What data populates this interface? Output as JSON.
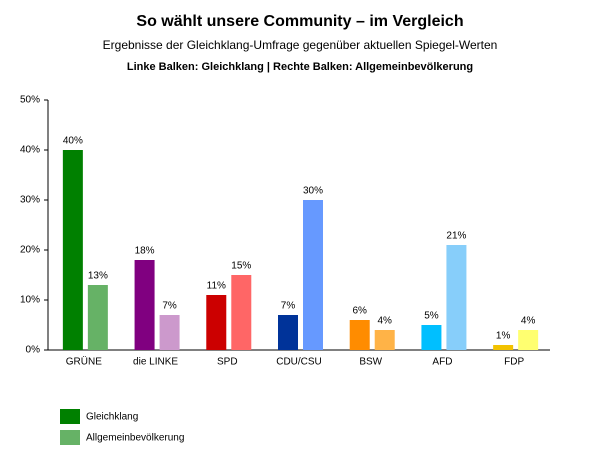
{
  "chart_data": {
    "type": "bar",
    "title": "So wählt unsere Community – im Vergleich",
    "subtitle": "Ergebnisse der Gleichklang-Umfrage gegenüber aktuellen Spiegel-Werten",
    "annotation": "Linke Balken: Gleichklang | Rechte Balken: Allgemeinbevölkerung",
    "categories": [
      "GRÜNE",
      "die LINKE",
      "SPD",
      "CDU/CSU",
      "BSW",
      "AFD",
      "FDP"
    ],
    "series": [
      {
        "name": "Gleichklang",
        "color": "#008000",
        "colors": [
          "#008000",
          "#800080",
          "#cc0000",
          "#003399",
          "#ff8c00",
          "#00bfff",
          "#f2c200"
        ],
        "values": [
          40,
          18,
          11,
          7,
          6,
          5,
          1
        ],
        "value_labels": [
          "40%",
          "18%",
          "11%",
          "7%",
          "6%",
          "5%",
          "1%"
        ]
      },
      {
        "name": "Allgemeinbevölkerung",
        "color": "#66b266",
        "colors": [
          "#66b266",
          "#cc99cc",
          "#ff6666",
          "#6699ff",
          "#ffb347",
          "#87cefa",
          "#ffff70"
        ],
        "values": [
          13,
          7,
          15,
          30,
          4,
          21,
          4
        ],
        "value_labels": [
          "13%",
          "7%",
          "15%",
          "30%",
          "4%",
          "21%",
          "4%"
        ]
      }
    ],
    "ylim": [
      0,
      50
    ],
    "yticks": [
      {
        "value": 0,
        "label": "0%"
      },
      {
        "value": 10,
        "label": "10%"
      },
      {
        "value": 20,
        "label": "20%"
      },
      {
        "value": 30,
        "label": "30%"
      },
      {
        "value": 40,
        "label": "40%"
      },
      {
        "value": 50,
        "label": "50%"
      }
    ],
    "grid": false,
    "legend": "bottom-left"
  }
}
